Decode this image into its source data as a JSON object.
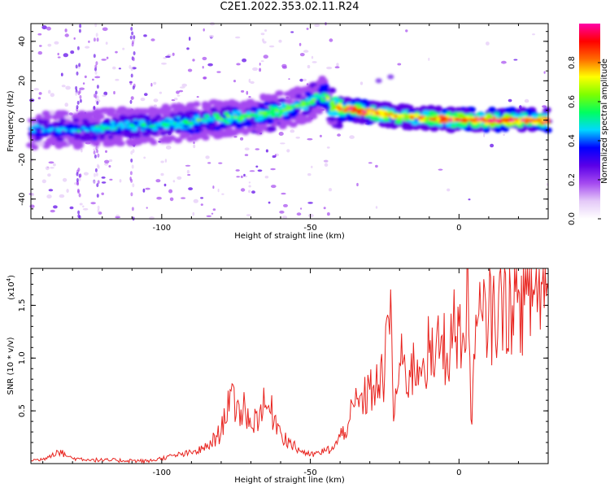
{
  "title": "C2E1.2022.353.02.11.R24",
  "colors": {
    "snr_line": "#e8231e",
    "axis": "#000000",
    "colormap": [
      "#ffffff",
      "#e4c9f8",
      "#a54af0",
      "#5a00e8",
      "#0000ff",
      "#00d8ff",
      "#00ff60",
      "#7dff00",
      "#ffff00",
      "#ff6a00",
      "#ff0000",
      "#ff00a8"
    ]
  },
  "chart_data": [
    {
      "type": "heatmap",
      "title": "",
      "xlabel": "Height of straight line (km)",
      "ylabel": "Frequency (Hz)",
      "xlim": [
        -144,
        30
      ],
      "ylim": [
        -50,
        49
      ],
      "xticks": [
        -100,
        -50,
        0
      ],
      "xtick_labels": [
        "-100",
        "-50",
        "0"
      ],
      "yticks": [
        -40,
        -20,
        0,
        20,
        40
      ],
      "ytick_labels": [
        "-40",
        "-20",
        "0",
        "20",
        "40"
      ],
      "colorbar": {
        "label": "Normalized spectral amplitude",
        "range": [
          0,
          1
        ],
        "ticks": [
          0.0,
          0.2,
          0.4,
          0.6,
          0.8
        ],
        "tick_labels": [
          "0.0",
          "0.2",
          "0.4",
          "0.6",
          "0.8"
        ]
      },
      "ridge": {
        "x": [
          -144,
          -130,
          -120,
          -110,
          -100,
          -90,
          -80,
          -70,
          -60,
          -50,
          -45,
          -42,
          -38,
          -30,
          -20,
          -10,
          0,
          10,
          20,
          30
        ],
        "y": [
          -5,
          -5,
          -4,
          -3,
          -2,
          -1,
          1,
          2,
          5,
          9,
          13,
          6,
          6,
          4,
          2,
          1,
          0,
          0,
          0,
          0
        ],
        "amplitude": [
          0.45,
          0.45,
          0.5,
          0.5,
          0.5,
          0.55,
          0.55,
          0.6,
          0.6,
          0.6,
          0.6,
          0.8,
          0.95,
          0.9,
          0.8,
          0.85,
          0.95,
          0.95,
          0.95,
          0.95
        ]
      }
    },
    {
      "type": "line",
      "title": "",
      "xlabel": "Height of straight line (km)",
      "ylabel": "SNR (10 * v/v)",
      "y_multiplier_label": "(x10",
      "y_multiplier_exp": "4",
      "xlim": [
        -144,
        30
      ],
      "ylim": [
        0,
        1.85
      ],
      "xticks": [
        -100,
        -50,
        0
      ],
      "xtick_labels": [
        "-100",
        "-50",
        "0"
      ],
      "yticks": [
        0.5,
        1.0,
        1.5
      ],
      "ytick_labels": [
        "0.5",
        "1.0",
        "1.5"
      ],
      "series": [
        {
          "x": [
            -144,
            -140,
            -135,
            -130,
            -125,
            -120,
            -115,
            -110,
            -105,
            -100,
            -95,
            -90,
            -85,
            -80,
            -77,
            -75,
            -72,
            -70,
            -67,
            -65,
            -62,
            -60,
            -57,
            -55,
            -50,
            -47,
            -45,
            -42,
            -40,
            -37,
            -35,
            -32,
            -30,
            -27,
            -25,
            -23,
            -22,
            -20,
            -18,
            -15,
            -12,
            -10,
            -8,
            -6,
            -4,
            -2,
            0,
            2,
            3,
            4,
            6,
            8,
            10,
            12,
            15,
            18,
            20,
            22,
            25,
            28,
            30
          ],
          "y": [
            0.03,
            0.04,
            0.12,
            0.05,
            0.04,
            0.03,
            0.03,
            0.03,
            0.02,
            0.05,
            0.08,
            0.1,
            0.15,
            0.3,
            0.7,
            0.45,
            0.55,
            0.35,
            0.5,
            0.55,
            0.45,
            0.3,
            0.2,
            0.15,
            0.08,
            0.1,
            0.12,
            0.15,
            0.25,
            0.4,
            0.55,
            0.6,
            0.7,
            0.75,
            0.85,
            1.65,
            0.4,
            0.95,
            0.85,
            0.9,
            1.0,
            1.05,
            0.95,
            1.2,
            1.05,
            1.25,
            1.3,
            1.05,
            1.85,
            0.42,
            1.3,
            1.35,
            1.45,
            1.4,
            1.6,
            1.5,
            1.65,
            1.5,
            1.65,
            1.7,
            1.65
          ]
        }
      ]
    }
  ]
}
